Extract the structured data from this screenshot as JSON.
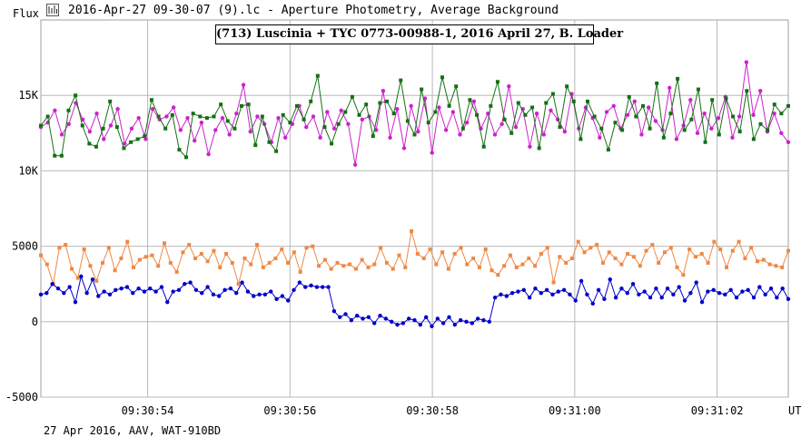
{
  "header": {
    "window_title": "2016-Apr-27 09-30-07 (9).lc - Aperture Photometry, Average Background",
    "icon": "chart-window-icon"
  },
  "footer": {
    "text": "27 Apr 2016, AAV, WAT-910BD"
  },
  "chart_data": {
    "type": "line",
    "title": "(713) Luscinia + TYC 0773-00988-1, 2016 April 27, B. Loader",
    "ylabel": "Flux",
    "xlabel": "UT",
    "ylim": [
      -5000,
      20000
    ],
    "y_ticks": [
      -5000,
      0,
      5000,
      10000,
      15000
    ],
    "y_tick_labels": [
      "-5000",
      "0",
      "5000",
      "10K",
      "15K"
    ],
    "x_range": [
      0,
      105
    ],
    "x_ticks": [
      15,
      35,
      55,
      75,
      95
    ],
    "x_tick_labels": [
      "09:30:54",
      "09:30:56",
      "09:30:58",
      "09:31:00",
      "09:31:02"
    ],
    "grid": true,
    "series": [
      {
        "color": "#cc22cc",
        "values": [
          12900,
          13200,
          14000,
          12400,
          13100,
          14500,
          13400,
          12600,
          13800,
          12100,
          13000,
          14100,
          11800,
          12800,
          13500,
          12100,
          14100,
          13400,
          13600,
          14200,
          12700,
          13500,
          12000,
          13200,
          11100,
          12700,
          13500,
          12400,
          13800,
          15700,
          12600,
          13600,
          13100,
          11900,
          13500,
          12200,
          13100,
          14300,
          12900,
          13600,
          12200,
          13900,
          12800,
          14000,
          13100,
          10400,
          13400,
          13600,
          12700,
          15300,
          12200,
          14100,
          11500,
          14300,
          12600,
          14800,
          11200,
          14200,
          12700,
          13900,
          12400,
          13200,
          14600,
          12800,
          13800,
          12400,
          13100,
          15600,
          12900,
          14100,
          11600,
          13800,
          12400,
          14000,
          13400,
          12600,
          15100,
          12800,
          14200,
          13500,
          12200,
          13900,
          14300,
          12800,
          13700,
          14600,
          12400,
          14200,
          13300,
          12700,
          15500,
          12100,
          13000,
          14700,
          12500,
          13800,
          12800,
          13500,
          14900,
          12200,
          13600,
          17200,
          13700,
          15300,
          12600,
          13800,
          12500,
          11900
        ],
        "marker": "circle"
      },
      {
        "color": "#157015",
        "values": [
          13000,
          13600,
          11000,
          11000,
          14000,
          15000,
          13000,
          11800,
          11600,
          12800,
          14600,
          12900,
          11500,
          11900,
          12100,
          12300,
          14700,
          13600,
          12800,
          13700,
          11400,
          10900,
          13800,
          13600,
          13500,
          13600,
          14400,
          13300,
          12800,
          14300,
          14400,
          11700,
          13600,
          11900,
          11300,
          13700,
          13200,
          14300,
          13400,
          14600,
          16300,
          12900,
          11800,
          13100,
          13900,
          14900,
          13700,
          14400,
          12300,
          14500,
          14600,
          13800,
          16000,
          13300,
          12400,
          15400,
          13200,
          13900,
          16200,
          14300,
          15600,
          12800,
          14700,
          13700,
          11600,
          14300,
          15900,
          13400,
          12500,
          14500,
          13700,
          14200,
          11500,
          14500,
          15100,
          12900,
          15600,
          14600,
          12100,
          14600,
          13600,
          12800,
          11400,
          13200,
          12700,
          14900,
          13600,
          14300,
          12800,
          15800,
          12200,
          13800,
          16100,
          12700,
          13400,
          15400,
          11900,
          14700,
          12400,
          14800,
          13600,
          12600,
          15300,
          12100,
          13100,
          12700,
          14400,
          13800,
          14300
        ],
        "marker": "square"
      },
      {
        "color": "#ee8844",
        "values": [
          4400,
          3800,
          2500,
          4900,
          5100,
          3500,
          2900,
          4800,
          3700,
          2700,
          3900,
          4900,
          3400,
          4200,
          5300,
          3600,
          4100,
          4300,
          4400,
          3700,
          5200,
          3900,
          3300,
          4600,
          5100,
          4200,
          4500,
          4000,
          4700,
          3600,
          4500,
          3900,
          2500,
          4200,
          3800,
          5100,
          3600,
          3900,
          4200,
          4800,
          3900,
          4600,
          3300,
          4900,
          5000,
          3700,
          4100,
          3500,
          3900,
          3700,
          3800,
          3500,
          4100,
          3600,
          3800,
          4900,
          3900,
          3500,
          4400,
          3600,
          6000,
          4500,
          4200,
          4800,
          3800,
          4600,
          3500,
          4500,
          4900,
          3800,
          4200,
          3600,
          4800,
          3400,
          3100,
          3700,
          4400,
          3600,
          3800,
          4200,
          3700,
          4500,
          4900,
          2600,
          4300,
          3900,
          4200,
          5300,
          4600,
          4900,
          5100,
          3900,
          4600,
          4200,
          3800,
          4500,
          4300,
          3700,
          4700,
          5100,
          3900,
          4600,
          4900,
          3600,
          3100,
          4800,
          4300,
          4500,
          3900,
          5300,
          4800,
          3600,
          4700,
          5300,
          4200,
          4900,
          4000,
          4100,
          3800,
          3700,
          3600,
          4700
        ],
        "marker": "square"
      },
      {
        "color": "#0000cc",
        "values": [
          1800,
          1900,
          2500,
          2200,
          1900,
          2300,
          1300,
          3000,
          1900,
          2800,
          1700,
          2000,
          1800,
          2100,
          2200,
          2300,
          1900,
          2200,
          2000,
          2200,
          2000,
          2300,
          1300,
          2000,
          2100,
          2500,
          2600,
          2100,
          1900,
          2300,
          1800,
          1700,
          2100,
          2200,
          1900,
          2600,
          2000,
          1700,
          1800,
          1800,
          2000,
          1500,
          1700,
          1400,
          2100,
          2600,
          2300,
          2400,
          2300,
          2300,
          2300,
          700,
          300,
          500,
          100,
          400,
          200,
          300,
          -100,
          400,
          200,
          0,
          -200,
          -100,
          200,
          100,
          -200,
          300,
          -300,
          200,
          -100,
          300,
          -200,
          100,
          0,
          -100,
          200,
          100,
          0,
          1600,
          1800,
          1700,
          1900,
          2000,
          2100,
          1600,
          2200,
          1900,
          2100,
          1800,
          2000,
          2100,
          1800,
          1400,
          2700,
          1800,
          1200,
          2100,
          1500,
          2800,
          1600,
          2200,
          1900,
          2500,
          1800,
          2000,
          1600,
          2200,
          1600,
          2200,
          1800,
          2300,
          1400,
          1900,
          2600,
          1300,
          2000,
          2100,
          1900,
          1800,
          2100,
          1600,
          2000,
          2100,
          1600,
          2300,
          1800,
          2200,
          1600,
          2200,
          1500
        ]
      }
    ]
  }
}
